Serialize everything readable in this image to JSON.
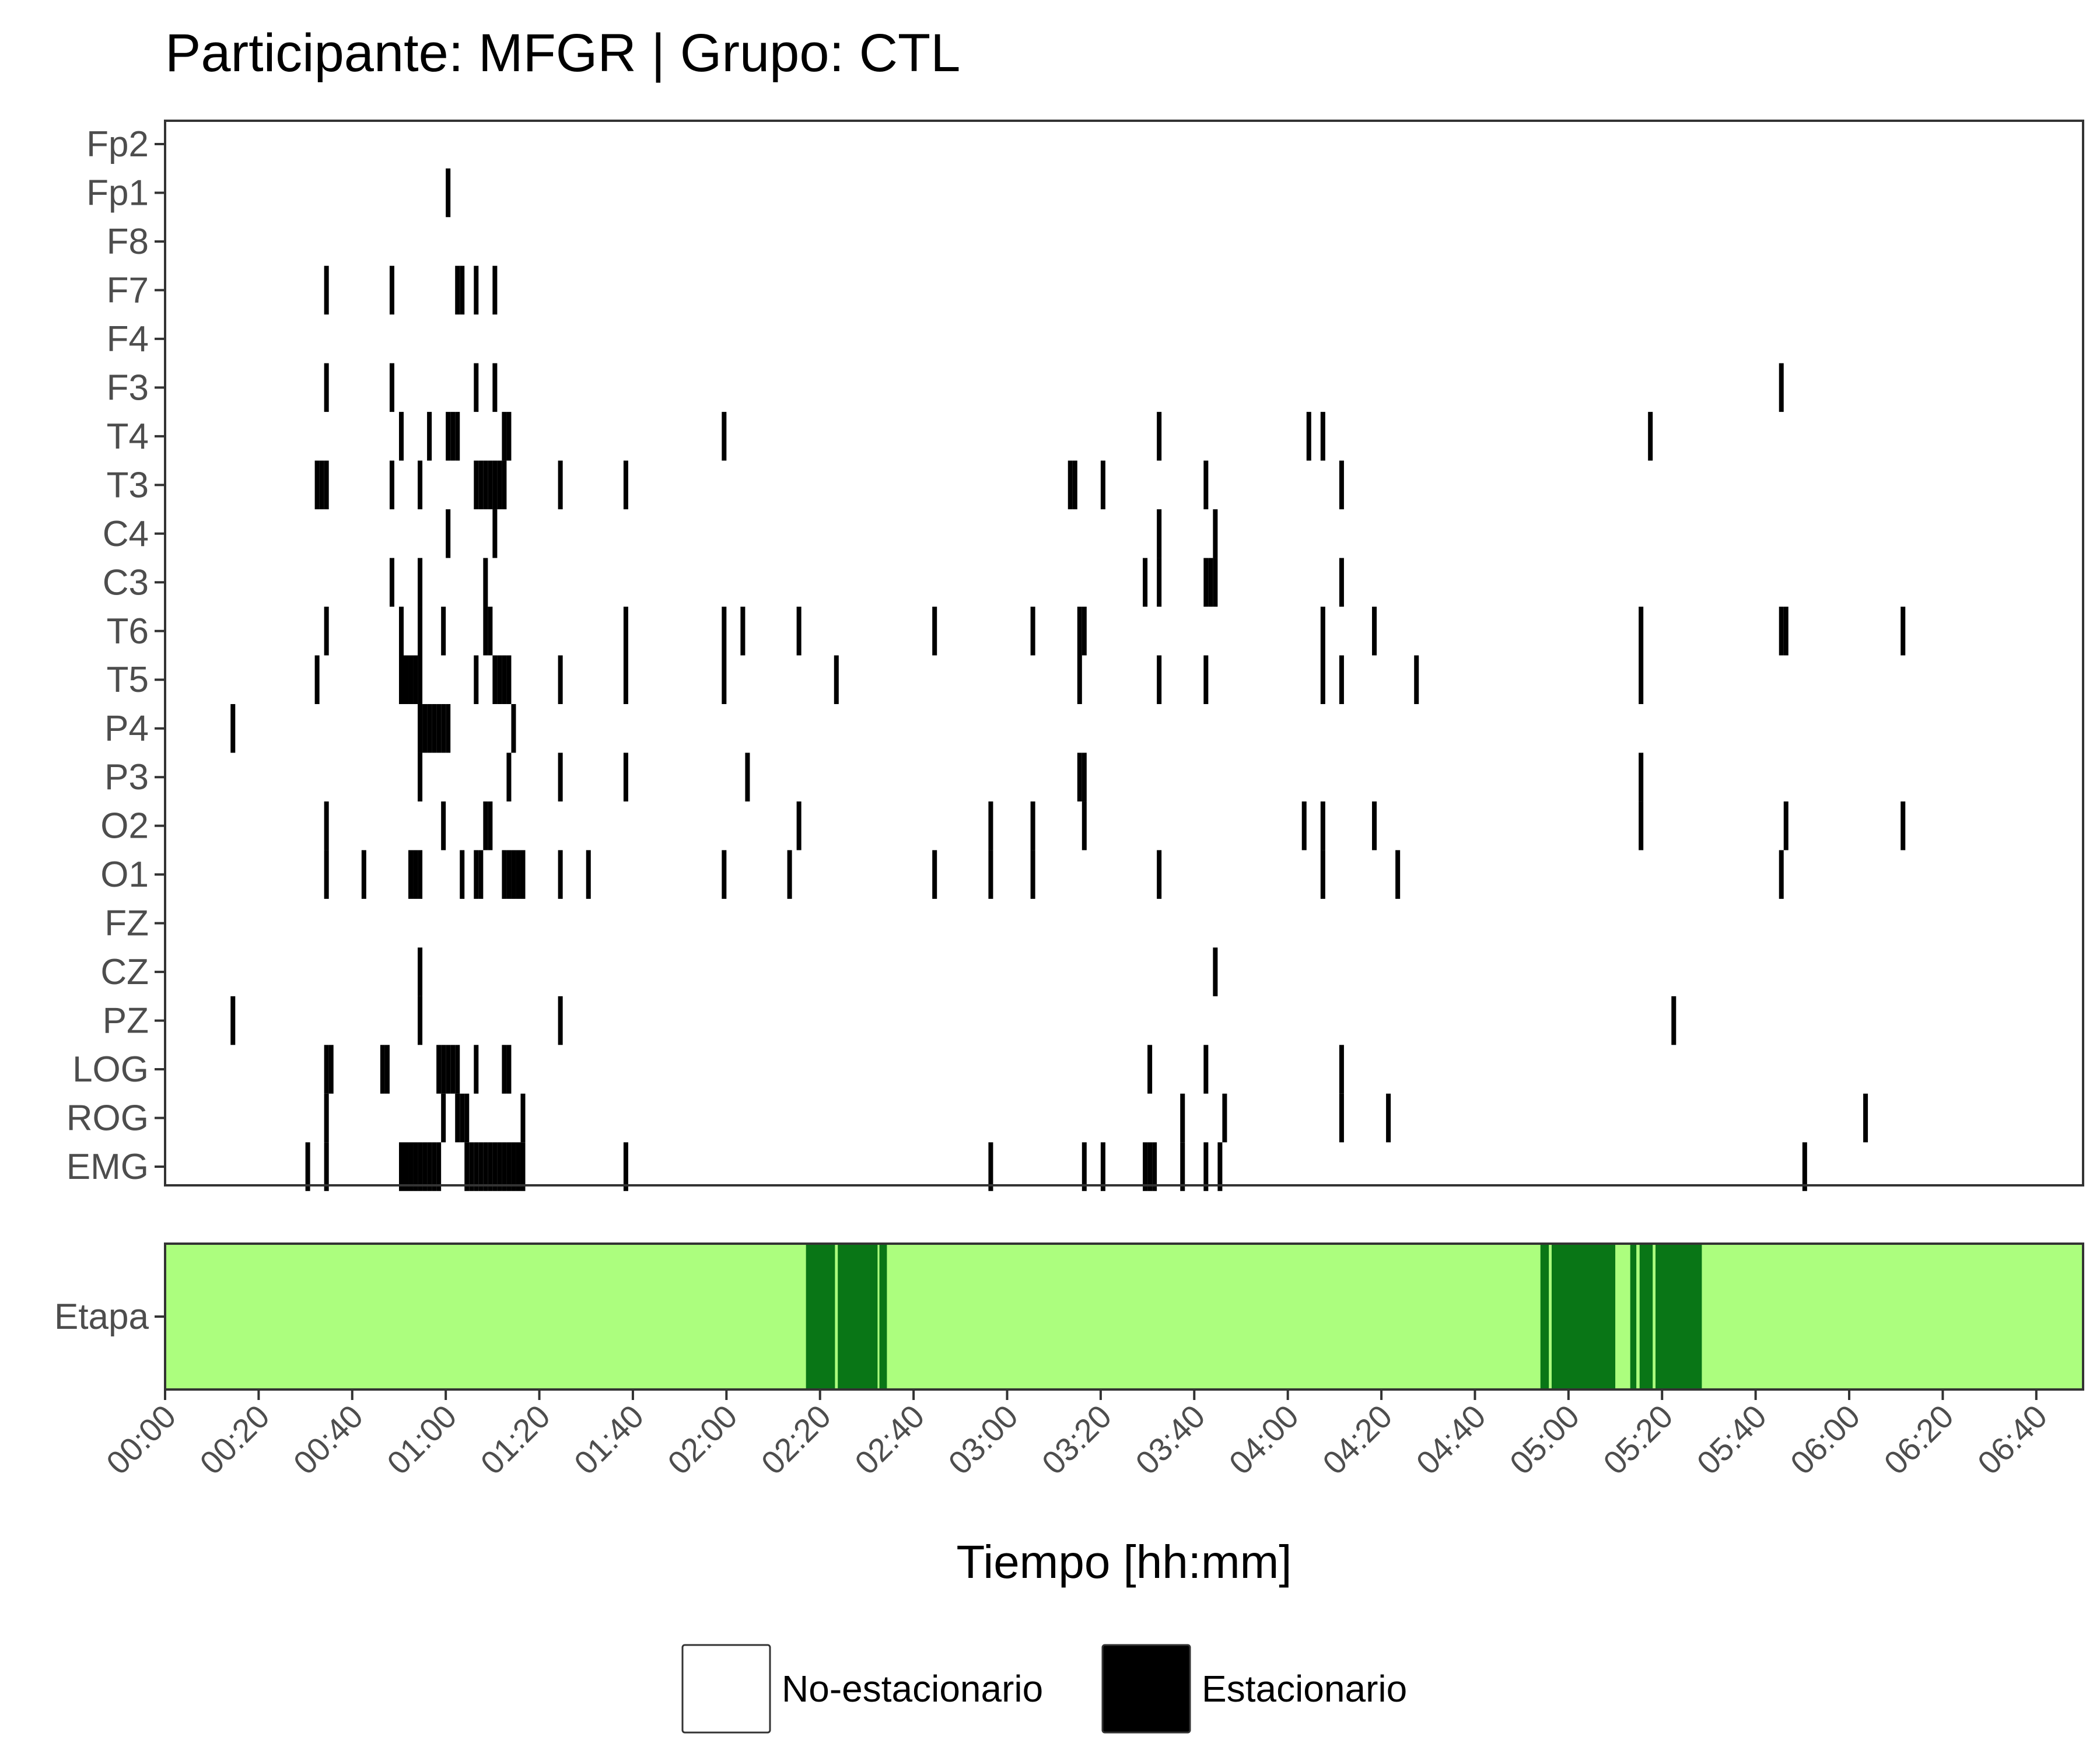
{
  "chart_data": {
    "type": "heatmap",
    "title": "Participante: MFGR | Grupo: CTL",
    "xlabel": "Tiempo [hh:mm]",
    "x_unit": "minutes",
    "xlim": [
      0,
      410
    ],
    "x_ticks": [
      {
        "value": 0,
        "label": "00:00"
      },
      {
        "value": 20,
        "label": "00:20"
      },
      {
        "value": 40,
        "label": "00:40"
      },
      {
        "value": 60,
        "label": "01:00"
      },
      {
        "value": 80,
        "label": "01:20"
      },
      {
        "value": 100,
        "label": "01:40"
      },
      {
        "value": 120,
        "label": "02:00"
      },
      {
        "value": 140,
        "label": "02:20"
      },
      {
        "value": 160,
        "label": "02:40"
      },
      {
        "value": 180,
        "label": "03:00"
      },
      {
        "value": 200,
        "label": "03:20"
      },
      {
        "value": 220,
        "label": "03:40"
      },
      {
        "value": 240,
        "label": "04:00"
      },
      {
        "value": 260,
        "label": "04:20"
      },
      {
        "value": 280,
        "label": "04:40"
      },
      {
        "value": 300,
        "label": "05:00"
      },
      {
        "value": 320,
        "label": "05:20"
      },
      {
        "value": 340,
        "label": "05:40"
      },
      {
        "value": 360,
        "label": "06:00"
      },
      {
        "value": 380,
        "label": "06:20"
      },
      {
        "value": 400,
        "label": "06:40"
      }
    ],
    "epoch_minutes": 1,
    "channels": [
      "Fp2",
      "Fp1",
      "F8",
      "F7",
      "F4",
      "F3",
      "T4",
      "T3",
      "C4",
      "C3",
      "T6",
      "T5",
      "P4",
      "P3",
      "O2",
      "O1",
      "FZ",
      "CZ",
      "PZ",
      "LOG",
      "ROG",
      "EMG"
    ],
    "stationary_epochs": {
      "Fp2": [],
      "Fp1": [
        60
      ],
      "F8": [],
      "F7": [
        34,
        48,
        62,
        63,
        66,
        70
      ],
      "F4": [],
      "F3": [
        34,
        48,
        66,
        70,
        345
      ],
      "T4": [
        50,
        56,
        60,
        61,
        62,
        72,
        73,
        119,
        212,
        244,
        247,
        317
      ],
      "T3": [
        32,
        33,
        34,
        48,
        54,
        66,
        67,
        68,
        69,
        70,
        71,
        72,
        84,
        98,
        193,
        194,
        200,
        222,
        251
      ],
      "C4": [
        60,
        70,
        212,
        224
      ],
      "C3": [
        48,
        54,
        68,
        209,
        212,
        222,
        223,
        224,
        251
      ],
      "T6": [
        34,
        50,
        54,
        59,
        68,
        69,
        98,
        119,
        123,
        135,
        164,
        185,
        195,
        196,
        247,
        258,
        315,
        345,
        346,
        371
      ],
      "T5": [
        32,
        50,
        51,
        52,
        53,
        54,
        66,
        70,
        71,
        72,
        73,
        84,
        98,
        119,
        143,
        195,
        212,
        222,
        247,
        251,
        267,
        315
      ],
      "P4": [
        14,
        54,
        55,
        56,
        57,
        58,
        59,
        60,
        74
      ],
      "P3": [
        54,
        73,
        84,
        98,
        124,
        195,
        196,
        315
      ],
      "O2": [
        34,
        59,
        68,
        69,
        135,
        176,
        185,
        196,
        243,
        247,
        258,
        315,
        346,
        371
      ],
      "O1": [
        34,
        42,
        52,
        53,
        54,
        63,
        66,
        67,
        72,
        73,
        74,
        75,
        76,
        84,
        90,
        119,
        133,
        164,
        176,
        185,
        212,
        247,
        263,
        345
      ],
      "FZ": [],
      "CZ": [
        54,
        224
      ],
      "PZ": [
        14,
        54,
        84,
        322
      ],
      "LOG": [
        34,
        35,
        46,
        47,
        58,
        59,
        60,
        61,
        62,
        66,
        72,
        73,
        210,
        222,
        251
      ],
      "ROG": [
        34,
        59,
        62,
        63,
        64,
        76,
        217,
        226,
        251,
        261,
        363
      ],
      "EMG": [
        30,
        34,
        50,
        51,
        52,
        53,
        54,
        55,
        56,
        57,
        58,
        64,
        65,
        66,
        67,
        68,
        69,
        70,
        71,
        72,
        73,
        74,
        75,
        76,
        98,
        176,
        196,
        200,
        209,
        210,
        211,
        217,
        222,
        225,
        350
      ]
    },
    "stage_band": {
      "label": "Etapa",
      "base_color": "#acfe7e",
      "highlight_color": "#097616",
      "segments_minutes": [
        [
          137,
          143.2
        ],
        [
          143.8,
          152.3
        ],
        [
          152.7,
          154.3
        ],
        [
          294,
          295.8
        ],
        [
          296.4,
          310
        ],
        [
          313.2,
          314.5
        ],
        [
          315.2,
          318
        ],
        [
          318.6,
          328.5
        ]
      ]
    },
    "legend": {
      "position": "bottom",
      "items": [
        {
          "label": "No-estacionario",
          "color": "#ffffff"
        },
        {
          "label": "Estacionario",
          "color": "#000000"
        }
      ]
    }
  }
}
